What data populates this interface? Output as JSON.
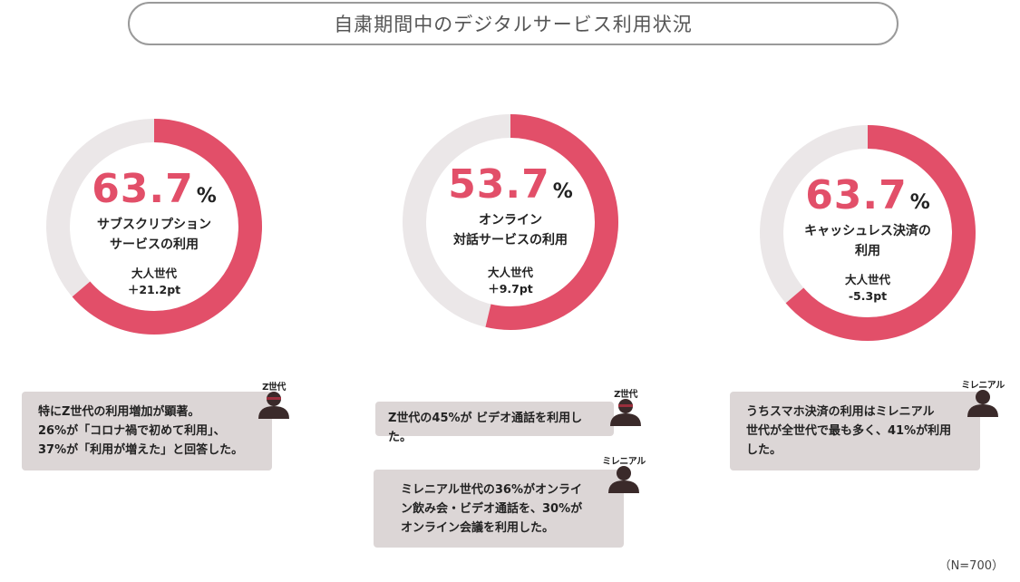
{
  "title": "自粛期間中のデジタルサービス利用状況",
  "colors": {
    "accent": "#e24f69",
    "track": "#ebe7e8"
  },
  "chart_data": [
    {
      "type": "pie",
      "value": 63.7,
      "unit": "%",
      "label": "サブスクリプション\nサービスの利用",
      "delta_label": "大人世代",
      "delta": "＋21.2pt"
    },
    {
      "type": "pie",
      "value": 53.7,
      "unit": "%",
      "label": "オンライン\n対話サービスの利用",
      "delta_label": "大人世代",
      "delta": "＋9.7pt"
    },
    {
      "type": "pie",
      "value": 63.7,
      "unit": "%",
      "label": "キャッシュレス決済の\n利用",
      "delta_label": "大人世代",
      "delta": "-5.3pt"
    }
  ],
  "cards": [
    {
      "tag": "Z世代",
      "text": "特にZ世代の利用増加が顕著。\n26%が「コロナ禍で初めて利用」、\n37%が「利用が増えた」と回答した。"
    },
    {
      "tag": "Z世代",
      "text": "Z世代の45%が ビデオ通話を利用した。"
    },
    {
      "tag": "ミレニアル",
      "text": "ミレニアル世代の36%がオンライ\nン飲み会・ビデオ通話を、30%が\nオンライン会議を利用した。"
    },
    {
      "tag": "ミレニアル",
      "text": "うちスマホ決済の利用はミレニアル\n世代が全世代で最も多く、41%が利用\nした。"
    }
  ],
  "footnote": "（N=700）"
}
